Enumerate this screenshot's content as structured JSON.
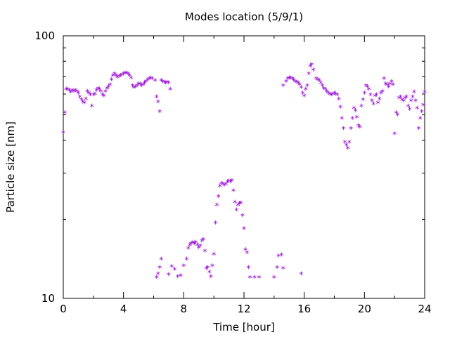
{
  "chart_data": {
    "type": "scatter",
    "title": "Modes location (5/9/1)",
    "xlabel": "Time [hour]",
    "ylabel": "Particle size [nm]",
    "xlim": [
      0,
      24
    ],
    "ylim": [
      10,
      100
    ],
    "yscale": "log",
    "xticks": [
      0,
      4,
      8,
      12,
      16,
      20,
      24
    ],
    "xtick_labels": [
      "0",
      "4",
      "8",
      "12",
      "16",
      "20",
      "24"
    ],
    "yticks": [
      10,
      100
    ],
    "ytick_labels": [
      "10",
      "100"
    ],
    "grid": false,
    "marker": "*",
    "color": "#9400d3",
    "series": [
      {
        "points": [
          [
            0.0,
            42.5
          ],
          [
            0.1,
            50.5
          ],
          [
            0.2,
            62.0
          ],
          [
            0.3,
            62.0
          ],
          [
            0.4,
            61.5
          ],
          [
            0.5,
            60.5
          ],
          [
            0.6,
            61.5
          ],
          [
            0.7,
            61.0
          ],
          [
            0.8,
            61.5
          ],
          [
            0.9,
            61.0
          ],
          [
            1.0,
            60.0
          ],
          [
            1.1,
            58.0
          ],
          [
            1.2,
            56.5
          ],
          [
            1.3,
            55.5
          ],
          [
            1.4,
            55.0
          ],
          [
            1.5,
            57.0
          ],
          [
            1.6,
            61.0
          ],
          [
            1.7,
            60.0
          ],
          [
            1.8,
            59.0
          ],
          [
            1.9,
            53.5
          ],
          [
            2.0,
            59.0
          ],
          [
            2.1,
            59.5
          ],
          [
            2.2,
            61.5
          ],
          [
            2.3,
            62.5
          ],
          [
            2.4,
            62.0
          ],
          [
            2.5,
            61.0
          ],
          [
            2.6,
            59.0
          ],
          [
            2.7,
            58.5
          ],
          [
            2.8,
            61.0
          ],
          [
            2.9,
            62.5
          ],
          [
            3.0,
            63.5
          ],
          [
            3.1,
            64.5
          ],
          [
            3.2,
            67.5
          ],
          [
            3.3,
            70.0
          ],
          [
            3.4,
            71.0
          ],
          [
            3.5,
            70.0
          ],
          [
            3.6,
            69.0
          ],
          [
            3.7,
            69.5
          ],
          [
            3.8,
            70.0
          ],
          [
            3.9,
            70.5
          ],
          [
            4.0,
            71.0
          ],
          [
            4.1,
            71.5
          ],
          [
            4.2,
            71.5
          ],
          [
            4.3,
            71.0
          ],
          [
            4.4,
            70.0
          ],
          [
            4.5,
            68.5
          ],
          [
            4.6,
            64.0
          ],
          [
            4.7,
            63.0
          ],
          [
            4.8,
            63.5
          ],
          [
            4.9,
            64.0
          ],
          [
            5.0,
            65.0
          ],
          [
            5.1,
            65.0
          ],
          [
            5.2,
            64.0
          ],
          [
            5.3,
            64.5
          ],
          [
            5.4,
            65.5
          ],
          [
            5.5,
            66.5
          ],
          [
            5.6,
            67.5
          ],
          [
            5.7,
            68.0
          ],
          [
            5.8,
            68.5
          ],
          [
            5.9,
            68.0
          ],
          [
            6.1,
            67.0
          ],
          [
            6.2,
            58.0
          ],
          [
            6.3,
            55.5
          ],
          [
            6.4,
            51.0
          ],
          [
            6.5,
            67.0
          ],
          [
            6.6,
            66.5
          ],
          [
            6.7,
            66.0
          ],
          [
            6.8,
            65.5
          ],
          [
            6.9,
            66.0
          ],
          [
            7.0,
            65.5
          ],
          [
            7.1,
            62.0
          ],
          [
            6.2,
            11.9
          ],
          [
            6.3,
            12.3
          ],
          [
            6.4,
            13.0
          ],
          [
            6.5,
            14.0
          ],
          [
            7.0,
            12.2
          ],
          [
            7.2,
            13.1
          ],
          [
            7.4,
            12.8
          ],
          [
            7.6,
            12.0
          ],
          [
            7.8,
            12.1
          ],
          [
            8.0,
            13.2
          ],
          [
            8.2,
            14.0
          ],
          [
            8.3,
            15.4
          ],
          [
            8.4,
            15.8
          ],
          [
            8.5,
            16.0
          ],
          [
            8.6,
            16.2
          ],
          [
            8.7,
            16.0
          ],
          [
            8.8,
            16.2
          ],
          [
            8.9,
            15.8
          ],
          [
            9.0,
            15.5
          ],
          [
            9.1,
            15.7
          ],
          [
            9.2,
            16.4
          ],
          [
            9.3,
            16.6
          ],
          [
            9.4,
            15.0
          ],
          [
            9.5,
            12.9
          ],
          [
            9.6,
            13.0
          ],
          [
            9.7,
            12.5
          ],
          [
            9.8,
            12.0
          ],
          [
            9.9,
            13.2
          ],
          [
            10.0,
            14.6
          ],
          [
            10.1,
            19.2
          ],
          [
            10.2,
            22.5
          ],
          [
            10.3,
            24.2
          ],
          [
            10.4,
            26.5
          ],
          [
            10.5,
            27.2
          ],
          [
            10.6,
            27.0
          ],
          [
            10.7,
            26.8
          ],
          [
            10.8,
            27.0
          ],
          [
            10.9,
            27.5
          ],
          [
            11.0,
            27.8
          ],
          [
            11.1,
            27.5
          ],
          [
            11.2,
            27.9
          ],
          [
            11.3,
            25.5
          ],
          [
            11.4,
            23.0
          ],
          [
            11.5,
            21.5
          ],
          [
            11.6,
            22.5
          ],
          [
            11.7,
            22.8
          ],
          [
            11.8,
            22.9
          ],
          [
            11.9,
            20.5
          ],
          [
            12.0,
            18.3
          ],
          [
            12.1,
            15.2
          ],
          [
            12.2,
            14.8
          ],
          [
            12.3,
            13.0
          ],
          [
            12.4,
            11.9
          ],
          [
            12.7,
            11.9
          ],
          [
            13.0,
            11.9
          ],
          [
            14.0,
            11.9
          ],
          [
            14.2,
            13.0
          ],
          [
            14.3,
            14.4
          ],
          [
            14.5,
            14.5
          ],
          [
            14.6,
            12.9
          ],
          [
            15.8,
            12.3
          ],
          [
            14.6,
            64.0
          ],
          [
            14.8,
            66.5
          ],
          [
            14.9,
            68.0
          ],
          [
            15.0,
            68.5
          ],
          [
            15.1,
            68.5
          ],
          [
            15.2,
            68.0
          ],
          [
            15.3,
            67.5
          ],
          [
            15.4,
            66.5
          ],
          [
            15.5,
            66.0
          ],
          [
            15.6,
            65.5
          ],
          [
            15.7,
            64.5
          ],
          [
            15.8,
            63.0
          ],
          [
            15.9,
            60.0
          ],
          [
            16.0,
            58.5
          ],
          [
            16.1,
            62.0
          ],
          [
            16.2,
            64.0
          ],
          [
            16.3,
            71.0
          ],
          [
            16.4,
            76.0
          ],
          [
            16.5,
            77.0
          ],
          [
            16.6,
            73.5
          ],
          [
            16.8,
            68.0
          ],
          [
            16.9,
            67.5
          ],
          [
            17.0,
            67.0
          ],
          [
            17.1,
            65.5
          ],
          [
            17.2,
            64.0
          ],
          [
            17.3,
            62.5
          ],
          [
            17.4,
            62.0
          ],
          [
            17.5,
            61.0
          ],
          [
            17.6,
            60.0
          ],
          [
            17.7,
            59.5
          ],
          [
            17.8,
            59.0
          ],
          [
            17.9,
            59.5
          ],
          [
            18.0,
            60.0
          ],
          [
            18.1,
            59.5
          ],
          [
            18.2,
            59.0
          ],
          [
            18.3,
            57.0
          ],
          [
            18.4,
            53.0
          ],
          [
            18.5,
            48.0
          ],
          [
            18.6,
            44.0
          ],
          [
            18.7,
            39.0
          ],
          [
            18.8,
            38.0
          ],
          [
            18.9,
            37.0
          ],
          [
            19.0,
            39.0
          ],
          [
            19.1,
            44.0
          ],
          [
            19.2,
            48.0
          ],
          [
            19.3,
            52.5
          ],
          [
            19.4,
            51.5
          ],
          [
            19.5,
            48.5
          ],
          [
            19.6,
            45.0
          ],
          [
            19.7,
            44.5
          ],
          [
            19.8,
            53.5
          ],
          [
            19.9,
            56.5
          ],
          [
            20.0,
            60.0
          ],
          [
            20.1,
            64.0
          ],
          [
            20.2,
            63.5
          ],
          [
            20.3,
            62.0
          ],
          [
            20.4,
            59.0
          ],
          [
            20.5,
            56.0
          ],
          [
            20.6,
            54.5
          ],
          [
            20.7,
            58.5
          ],
          [
            20.8,
            59.0
          ],
          [
            20.9,
            55.0
          ],
          [
            21.0,
            57.0
          ],
          [
            21.1,
            60.0
          ],
          [
            21.2,
            61.0
          ],
          [
            21.3,
            68.0
          ],
          [
            21.4,
            65.0
          ],
          [
            21.5,
            64.5
          ],
          [
            21.6,
            63.5
          ],
          [
            21.7,
            65.0
          ],
          [
            21.8,
            66.5
          ],
          [
            21.9,
            64.5
          ],
          [
            22.0,
            42.0
          ],
          [
            22.1,
            50.5
          ],
          [
            22.2,
            49.5
          ],
          [
            22.3,
            57.5
          ],
          [
            22.4,
            58.0
          ],
          [
            22.5,
            56.5
          ],
          [
            22.6,
            56.0
          ],
          [
            22.7,
            57.5
          ],
          [
            22.8,
            58.0
          ],
          [
            22.9,
            53.5
          ],
          [
            23.0,
            52.0
          ],
          [
            23.1,
            56.0
          ],
          [
            23.2,
            58.0
          ],
          [
            23.3,
            60.5
          ],
          [
            23.4,
            56.0
          ],
          [
            23.5,
            52.5
          ],
          [
            23.6,
            44.0
          ],
          [
            23.7,
            48.0
          ],
          [
            23.8,
            51.0
          ],
          [
            23.9,
            54.0
          ],
          [
            24.0,
            60.5
          ]
        ]
      }
    ]
  }
}
